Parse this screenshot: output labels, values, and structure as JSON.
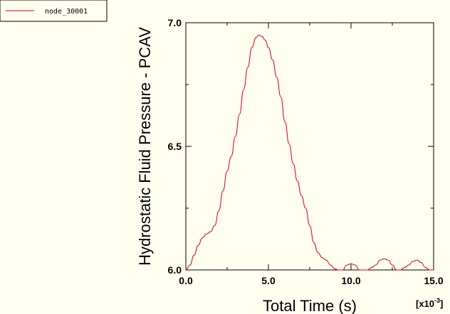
{
  "colors": {
    "background": "#fffff0",
    "series": "#dd0000",
    "axis": "#000000"
  },
  "chart_data": {
    "type": "line",
    "title": "",
    "xlabel": "Total Time  (s)",
    "ylabel": "Hydrostatic Fluid Pressure - PCAV",
    "x_multiplier": {
      "base": "[x10",
      "exp": "-3",
      "close": "]"
    },
    "xlim": [
      0.0,
      15.0
    ],
    "ylim": [
      6.0,
      7.0
    ],
    "xticks": [
      0.0,
      5.0,
      10.0,
      15.0
    ],
    "xtick_labels": [
      "0.0",
      "5.0",
      "10.0",
      "15.0"
    ],
    "yticks": [
      6.0,
      6.5,
      7.0
    ],
    "ytick_labels": [
      "6.0",
      "6.5",
      "7.0"
    ],
    "grid": false,
    "legend_placement": "top-left",
    "series": [
      {
        "name": "node_30001",
        "x": [
          0.0,
          0.25,
          0.5,
          0.75,
          1.0,
          1.25,
          1.5,
          1.75,
          2.0,
          2.25,
          2.5,
          2.75,
          3.0,
          3.25,
          3.5,
          3.75,
          4.0,
          4.25,
          4.4,
          4.6,
          4.8,
          5.0,
          5.25,
          5.5,
          5.75,
          6.0,
          6.25,
          6.5,
          6.75,
          7.0,
          7.25,
          7.5,
          7.75,
          8.0,
          8.25,
          8.5,
          8.75,
          9.0,
          9.25,
          9.5,
          9.75,
          10.0,
          10.25,
          10.5,
          10.75,
          11.0,
          11.25,
          11.5,
          11.75,
          12.0,
          12.25,
          12.5,
          12.75,
          13.0,
          13.25,
          13.5,
          13.75,
          14.0,
          14.25,
          14.5,
          14.75,
          15.0
        ],
        "y": [
          6.0,
          6.02,
          6.06,
          6.1,
          6.13,
          6.145,
          6.155,
          6.18,
          6.24,
          6.32,
          6.4,
          6.46,
          6.54,
          6.63,
          6.73,
          6.82,
          6.9,
          6.94,
          6.95,
          6.945,
          6.93,
          6.9,
          6.85,
          6.78,
          6.7,
          6.6,
          6.51,
          6.43,
          6.36,
          6.3,
          6.25,
          6.18,
          6.11,
          6.07,
          6.05,
          6.04,
          6.02,
          6.005,
          6.0,
          6.0,
          6.02,
          6.025,
          6.02,
          6.0,
          5.998,
          6.0,
          6.01,
          6.02,
          6.04,
          6.045,
          6.04,
          6.02,
          6.0,
          6.0,
          6.01,
          6.02,
          6.035,
          6.04,
          6.03,
          6.01,
          6.0,
          6.0
        ]
      }
    ]
  }
}
